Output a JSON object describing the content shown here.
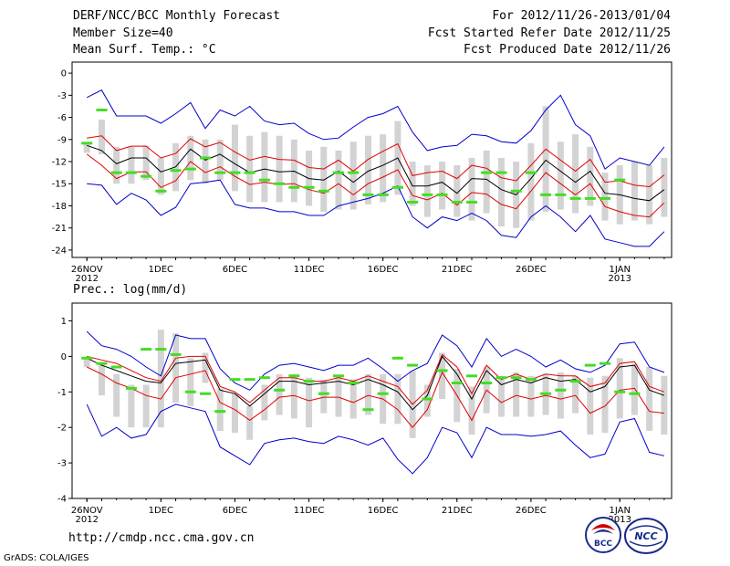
{
  "header": {
    "title": "DERF/NCC/BCC Monthly Forecast",
    "member_size": "Member Size=40",
    "variable": "Mean Surf. Temp.: °C",
    "forecast_period": "For 2012/11/26-2013/01/04",
    "fcst_started": "Fcst Started Refer Date 2012/11/25",
    "fcst_produced": "Fcst Produced Date 2012/11/26"
  },
  "lower_title": "Prec.: log(mm/d)",
  "footer": {
    "url": "http://cmdp.ncc.cma.gov.cn",
    "grads": "GrADS: COLA/IGES",
    "bcc_logo_text": "BCC",
    "ncc_logo_text": "NCC"
  },
  "colors": {
    "ensemble_mean": "#000000",
    "inner_range": "#e00000",
    "outer_range": "#0000cc",
    "observed": "#44dd22",
    "spread_bar": "#d3d3d3"
  },
  "chart_data": [
    {
      "type": "line",
      "name": "temperature",
      "title": "Mean Surf. Temp.: °C",
      "ylim": [
        -25,
        1.5
      ],
      "yticks": [
        0,
        -3,
        -6,
        -9,
        -12,
        -15,
        -18,
        -21,
        -24
      ],
      "xlim": [
        -1,
        39.5
      ],
      "xticks": [
        {
          "day": 0,
          "label": "26NOV",
          "sub": "2012"
        },
        {
          "day": 5,
          "label": "1DEC",
          "sub": ""
        },
        {
          "day": 10,
          "label": "6DEC",
          "sub": ""
        },
        {
          "day": 15,
          "label": "11DEC",
          "sub": ""
        },
        {
          "day": 20,
          "label": "16DEC",
          "sub": ""
        },
        {
          "day": 25,
          "label": "21DEC",
          "sub": ""
        },
        {
          "day": 30,
          "label": "26DEC",
          "sub": ""
        },
        {
          "day": 36,
          "label": "1JAN",
          "sub": "2013"
        }
      ],
      "mean": [
        -9.8,
        -10.5,
        -12.3,
        -11.5,
        -11.5,
        -13.4,
        -12.7,
        -10.3,
        -11.8,
        -11.0,
        -12.3,
        -13.5,
        -13.0,
        -13.4,
        -13.3,
        -14.3,
        -14.5,
        -13.3,
        -14.8,
        -13.3,
        -12.5,
        -11.5,
        -15.3,
        -15.3,
        -14.8,
        -16.3,
        -14.3,
        -14.4,
        -15.8,
        -16.5,
        -14.3,
        -11.8,
        -13.3,
        -14.8,
        -13.3,
        -16.3,
        -16.5,
        -17.0,
        -17.3,
        -15.8
      ],
      "red_upper": [
        -8.8,
        -8.5,
        -10.5,
        -9.9,
        -9.9,
        -11.5,
        -10.9,
        -8.9,
        -10.0,
        -9.4,
        -10.7,
        -11.8,
        -11.3,
        -11.7,
        -11.8,
        -12.8,
        -13.0,
        -11.8,
        -13.3,
        -11.7,
        -10.6,
        -9.6,
        -13.9,
        -13.5,
        -13.3,
        -14.3,
        -12.5,
        -12.9,
        -14.2,
        -14.6,
        -12.5,
        -10.3,
        -11.8,
        -13.3,
        -11.7,
        -14.8,
        -14.6,
        -15.2,
        -15.4,
        -13.8
      ],
      "red_lower": [
        -11.0,
        -12.5,
        -14.3,
        -13.4,
        -13.4,
        -15.5,
        -14.6,
        -12.0,
        -13.5,
        -12.7,
        -14.0,
        -15.1,
        -14.8,
        -15.1,
        -15.0,
        -15.8,
        -16.3,
        -15.0,
        -16.5,
        -15.0,
        -14.1,
        -13.1,
        -16.6,
        -17.2,
        -16.3,
        -17.9,
        -16.2,
        -16.4,
        -17.8,
        -18.4,
        -16.0,
        -13.5,
        -15.0,
        -16.5,
        -15.0,
        -18.1,
        -18.8,
        -19.3,
        -19.5,
        -17.6
      ],
      "blue_upper": [
        -3.3,
        -2.3,
        -5.8,
        -5.8,
        -5.8,
        -6.8,
        -5.5,
        -4.0,
        -7.5,
        -5.0,
        -5.8,
        -4.5,
        -6.5,
        -7.0,
        -6.8,
        -8.2,
        -9.0,
        -8.8,
        -7.3,
        -6.0,
        -5.5,
        -4.5,
        -8.0,
        -10.5,
        -10.0,
        -9.8,
        -8.3,
        -8.5,
        -9.3,
        -9.5,
        -7.8,
        -5.0,
        -3.0,
        -7.0,
        -8.5,
        -13.0,
        -11.5,
        -12.0,
        -12.5,
        -10.0
      ],
      "blue_lower": [
        -15.0,
        -15.2,
        -17.8,
        -16.3,
        -17.2,
        -19.3,
        -18.2,
        -15.0,
        -14.8,
        -14.5,
        -17.8,
        -18.3,
        -18.3,
        -18.8,
        -18.8,
        -19.3,
        -19.3,
        -18.0,
        -17.5,
        -17.0,
        -16.3,
        -15.3,
        -19.5,
        -21.0,
        -19.5,
        -20.0,
        -19.0,
        -20.0,
        -22.0,
        -22.3,
        -19.5,
        -18.0,
        -19.5,
        -21.5,
        -19.3,
        -22.5,
        -23.0,
        -23.5,
        -23.5,
        -21.5
      ],
      "bar_top": [
        -9.5,
        -6.3,
        -10.0,
        -10.0,
        -9.8,
        -11.5,
        -9.5,
        -8.5,
        -9.0,
        -9.0,
        -7.0,
        -8.5,
        -8.0,
        -8.5,
        -9.0,
        -10.5,
        -10.0,
        -10.5,
        -9.3,
        -8.5,
        -8.3,
        -6.5,
        -12.0,
        -12.5,
        -12.0,
        -12.5,
        -11.5,
        -10.5,
        -11.5,
        -12.0,
        -9.5,
        -4.5,
        -9.3,
        -8.3,
        -10.0,
        -13.5,
        -12.5,
        -12.0,
        -12.5,
        -11.5
      ],
      "bar_bottom": [
        -10.8,
        -11.0,
        -15.0,
        -15.0,
        -14.5,
        -16.5,
        -16.0,
        -14.5,
        -15.0,
        -14.5,
        -16.0,
        -17.5,
        -17.5,
        -17.5,
        -17.5,
        -18.0,
        -18.8,
        -18.5,
        -18.5,
        -17.8,
        -17.5,
        -16.5,
        -18.0,
        -19.5,
        -18.5,
        -19.5,
        -20.0,
        -19.0,
        -20.8,
        -21.0,
        -20.0,
        -18.8,
        -18.5,
        -19.0,
        -18.0,
        -20.0,
        -20.5,
        -20.0,
        -20.5,
        -19.5
      ],
      "observed": [
        -9.5,
        -5.0,
        -13.5,
        -13.5,
        -14.0,
        -16.0,
        -13.2,
        -13.0,
        -11.5,
        -13.5,
        -13.5,
        -13.5,
        -14.5,
        -15.0,
        -15.5,
        -15.5,
        -16.0,
        -13.5,
        -13.5,
        -16.5,
        -16.5,
        -15.5,
        -17.5,
        -16.5,
        -16.5,
        -17.5,
        -17.5,
        -13.5,
        -13.5,
        -16.0,
        -13.5,
        -16.5,
        -16.5,
        -17.0,
        -17.0,
        -17.0,
        -14.5
      ]
    },
    {
      "type": "line",
      "name": "precipitation",
      "title": "Prec.: log(mm/d)",
      "ylim": [
        -4,
        1.5
      ],
      "yticks": [
        1,
        0,
        -1,
        -2,
        -3,
        -4
      ],
      "xlim": [
        -1,
        39.5
      ],
      "xticks": [
        {
          "day": 0,
          "label": "26NOV",
          "sub": "2012"
        },
        {
          "day": 5,
          "label": "1DEC",
          "sub": ""
        },
        {
          "day": 10,
          "label": "6DEC",
          "sub": ""
        },
        {
          "day": 15,
          "label": "11DEC",
          "sub": ""
        },
        {
          "day": 20,
          "label": "16DEC",
          "sub": ""
        },
        {
          "day": 25,
          "label": "21DEC",
          "sub": ""
        },
        {
          "day": 30,
          "label": "26DEC",
          "sub": ""
        },
        {
          "day": 36,
          "label": "1JAN",
          "sub": "2013"
        }
      ],
      "mean": [
        -0.05,
        -0.25,
        -0.4,
        -0.55,
        -0.7,
        -0.75,
        -0.2,
        -0.15,
        -0.1,
        -0.95,
        -1.05,
        -1.4,
        -1.05,
        -0.7,
        -0.7,
        -0.8,
        -0.75,
        -0.7,
        -0.8,
        -0.65,
        -0.8,
        -1.0,
        -1.5,
        -1.1,
        0.0,
        -0.5,
        -1.2,
        -0.4,
        -0.8,
        -0.65,
        -0.75,
        -0.6,
        -0.7,
        -0.65,
        -1.0,
        -0.85,
        -0.3,
        -0.25,
        -0.95,
        -1.1
      ],
      "red_upper": [
        0.0,
        -0.1,
        -0.2,
        -0.4,
        -0.6,
        -0.7,
        -0.05,
        0.0,
        0.0,
        -0.85,
        -1.0,
        -1.3,
        -0.95,
        -0.6,
        -0.6,
        -0.7,
        -0.7,
        -0.6,
        -0.7,
        -0.55,
        -0.7,
        -0.85,
        -1.35,
        -0.95,
        0.05,
        -0.3,
        -1.05,
        -0.25,
        -0.65,
        -0.5,
        -0.65,
        -0.5,
        -0.55,
        -0.55,
        -0.85,
        -0.75,
        -0.2,
        -0.15,
        -0.85,
        -1.0
      ],
      "red_lower": [
        -0.3,
        -0.5,
        -0.75,
        -0.9,
        -1.1,
        -1.2,
        -0.6,
        -0.5,
        -0.4,
        -1.3,
        -1.5,
        -1.8,
        -1.5,
        -1.15,
        -1.1,
        -1.25,
        -1.15,
        -1.15,
        -1.3,
        -1.1,
        -1.2,
        -1.5,
        -2.0,
        -1.5,
        -0.45,
        -1.1,
        -1.8,
        -0.95,
        -1.3,
        -1.1,
        -1.2,
        -1.1,
        -1.2,
        -1.1,
        -1.6,
        -1.4,
        -0.95,
        -0.9,
        -1.55,
        -1.6
      ],
      "blue_upper": [
        0.7,
        0.3,
        0.2,
        0.0,
        -0.3,
        -0.55,
        0.6,
        0.5,
        0.5,
        -0.35,
        -0.75,
        -0.95,
        -0.5,
        -0.25,
        -0.2,
        -0.3,
        -0.4,
        -0.25,
        -0.25,
        -0.05,
        -0.35,
        -0.7,
        -0.4,
        -0.2,
        0.6,
        0.3,
        -0.3,
        0.5,
        0.0,
        0.2,
        0.0,
        -0.3,
        -0.1,
        -0.35,
        -0.45,
        -0.25,
        0.35,
        0.4,
        -0.3,
        -0.45
      ],
      "blue_lower": [
        -1.35,
        -2.25,
        -2.0,
        -2.3,
        -2.2,
        -1.55,
        -1.35,
        -1.45,
        -1.55,
        -2.55,
        -2.8,
        -3.05,
        -2.45,
        -2.35,
        -2.3,
        -2.4,
        -2.45,
        -2.25,
        -2.35,
        -2.5,
        -2.3,
        -2.9,
        -3.3,
        -2.85,
        -2.0,
        -2.15,
        -2.85,
        -2.0,
        -2.2,
        -2.2,
        -2.25,
        -2.2,
        -2.1,
        -2.5,
        -2.85,
        -2.75,
        -1.85,
        -1.75,
        -2.7,
        -2.8
      ],
      "bar_top": [
        -0.05,
        -0.2,
        -0.5,
        -0.8,
        -0.8,
        0.75,
        0.65,
        -0.05,
        0.1,
        -0.9,
        -1.05,
        -1.4,
        -0.8,
        -0.5,
        -0.5,
        -0.6,
        -0.65,
        -0.55,
        -0.65,
        -0.5,
        -0.5,
        -0.5,
        -0.4,
        -0.8,
        0.1,
        -0.35,
        -0.85,
        -0.3,
        -0.55,
        -0.45,
        -0.55,
        -0.5,
        -0.45,
        -0.55,
        -0.6,
        -0.55,
        -0.05,
        -0.2,
        -0.3,
        -0.55
      ],
      "bar_bottom": [
        -0.3,
        -1.1,
        -1.7,
        -2.0,
        -2.0,
        -2.0,
        -1.3,
        -1.4,
        -0.75,
        -2.1,
        -2.15,
        -2.35,
        -1.8,
        -1.65,
        -1.75,
        -2.0,
        -1.6,
        -1.7,
        -1.75,
        -1.65,
        -1.9,
        -1.9,
        -2.3,
        -1.7,
        -1.2,
        -1.85,
        -2.2,
        -1.6,
        -1.7,
        -1.7,
        -1.7,
        -1.65,
        -1.75,
        -1.6,
        -2.2,
        -2.15,
        -1.75,
        -1.65,
        -2.1,
        -2.2
      ],
      "observed": [
        -0.05,
        -0.2,
        -0.3,
        -0.9,
        0.2,
        0.2,
        0.05,
        -1.0,
        -1.05,
        -1.55,
        -0.65,
        -0.65,
        -0.6,
        -0.95,
        -0.55,
        -0.7,
        -1.05,
        -0.55,
        -0.75,
        -1.5,
        -1.05,
        -0.05,
        -0.25,
        -1.2,
        -0.4,
        -0.75,
        -0.55,
        -0.75,
        -0.6,
        -0.6,
        -0.65,
        -1.05,
        -0.95,
        -0.7,
        -0.25,
        -0.2,
        -1.0,
        -1.05
      ]
    }
  ]
}
